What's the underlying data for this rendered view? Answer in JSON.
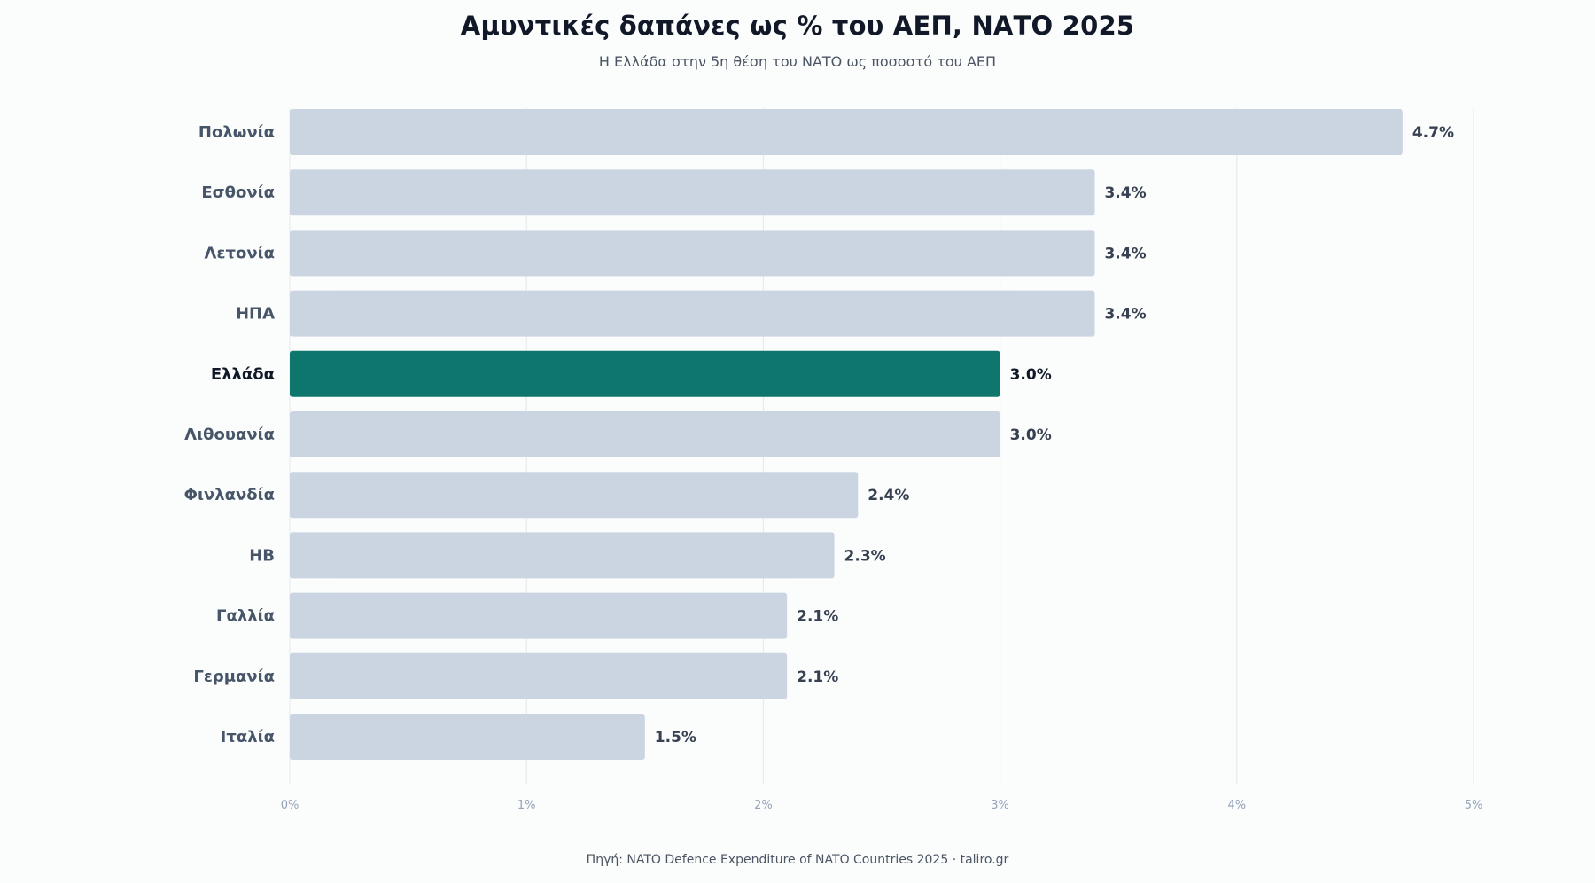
{
  "chart_data": {
    "type": "bar",
    "orientation": "horizontal",
    "title": "Αμυντικές δαπάνες ως % του ΑΕΠ, ΝΑΤΟ 2025",
    "subtitle": "Η Ελλάδα στην 5η θέση του ΝΑΤΟ ως ποσοστό του ΑΕΠ",
    "categories": [
      "Πολωνία",
      "Εσθονία",
      "Λετονία",
      "ΗΠΑ",
      "Ελλάδα",
      "Λιθουανία",
      "Φινλανδία",
      "ΗΒ",
      "Γαλλία",
      "Γερμανία",
      "Ιταλία"
    ],
    "values": [
      4.7,
      3.4,
      3.4,
      3.4,
      3.0,
      3.0,
      2.4,
      2.3,
      2.1,
      2.1,
      1.5
    ],
    "value_labels": [
      "4.7%",
      "3.4%",
      "3.4%",
      "3.4%",
      "3.0%",
      "3.0%",
      "2.4%",
      "2.3%",
      "2.1%",
      "2.1%",
      "1.5%"
    ],
    "highlight": "Ελλάδα",
    "xlim": [
      0,
      5
    ],
    "x_ticks": [
      0,
      1,
      2,
      3,
      4,
      5
    ],
    "x_tick_labels": [
      "0%",
      "1%",
      "2%",
      "3%",
      "4%",
      "5%"
    ],
    "grid": true,
    "colors": {
      "bar": "#cbd5e1",
      "highlight": "#0f766e",
      "grid": "#e5e7eb",
      "label": "#475569",
      "highlight_label": "#111827",
      "value_label": "#374151",
      "tick": "#94a3b8"
    }
  },
  "source": "Πηγή: NATO Defence Expenditure of NATO Countries 2025 · taliro.gr"
}
